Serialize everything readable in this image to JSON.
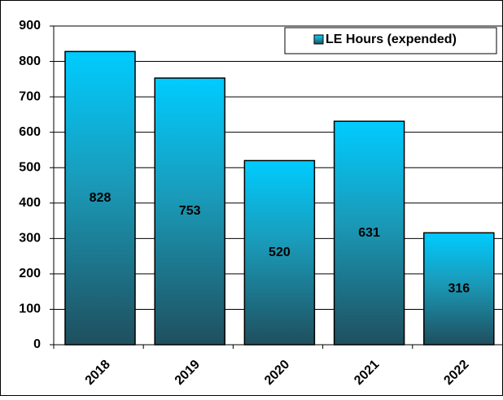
{
  "chart_data": {
    "type": "bar",
    "categories": [
      "2018",
      "2019",
      "2020",
      "2021",
      "2022"
    ],
    "series": [
      {
        "name": "LE Hours (expended)",
        "color": "#00ccff",
        "values": [
          828,
          753,
          520,
          631,
          316
        ]
      }
    ],
    "ylim": [
      0,
      900
    ],
    "yticks": [
      0,
      100,
      200,
      300,
      400,
      500,
      600,
      700,
      800,
      900
    ],
    "grid": true,
    "legend": "top-right"
  }
}
